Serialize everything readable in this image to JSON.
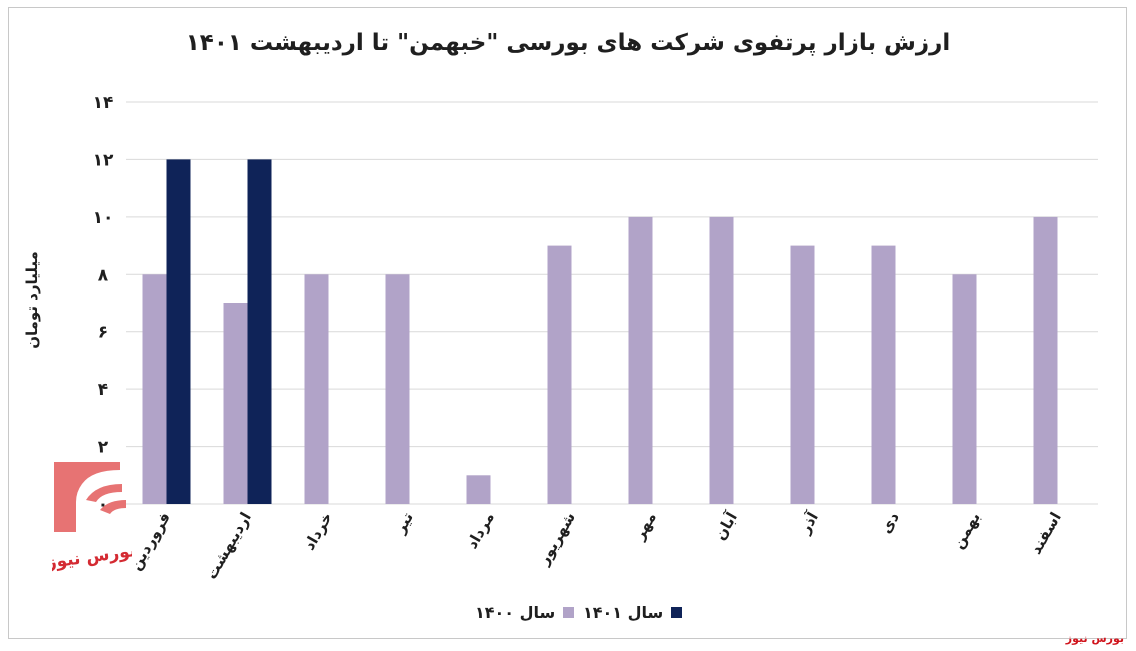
{
  "chart_data": {
    "type": "bar",
    "title": "ارزش بازار پرتفوی شرکت های بورسی \"خبهمن\" تا اردیبهشت ۱۴۰۱",
    "xlabel": "",
    "ylabel": "میلیارد تومان",
    "ylim": [
      0,
      14
    ],
    "yticks": [
      0,
      2,
      4,
      6,
      8,
      10,
      12,
      14
    ],
    "ytick_labels": [
      "۰",
      "۲",
      "۴",
      "۶",
      "۸",
      "۱۰",
      "۱۲",
      "۱۴"
    ],
    "grid": true,
    "legend_position": "bottom",
    "categories": [
      "فروردین",
      "اردیبهشت",
      "خرداد",
      "تیر",
      "مرداد",
      "شهریور",
      "مهر",
      "آبان",
      "آذر",
      "دی",
      "بهمن",
      "اسفند"
    ],
    "series": [
      {
        "name": "سال ۱۴۰۰",
        "color": "#b1a3c8",
        "values": [
          8,
          7,
          8,
          8,
          1,
          9,
          10,
          10,
          9,
          9,
          8,
          10
        ]
      },
      {
        "name": "سال ۱۴۰۱",
        "color": "#0f2358",
        "values": [
          12,
          12,
          null,
          null,
          null,
          null,
          null,
          null,
          null,
          null,
          null,
          null
        ]
      }
    ]
  },
  "watermark": "بورس نیوز",
  "logo_text": "بورس نیوز"
}
